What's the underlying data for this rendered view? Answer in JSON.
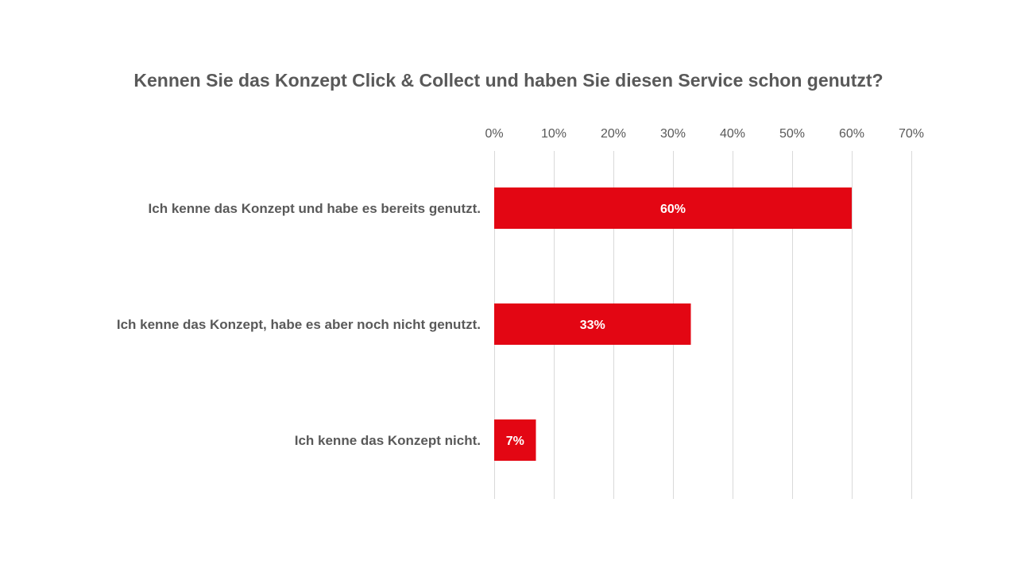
{
  "chart_data": {
    "type": "bar",
    "orientation": "horizontal",
    "title": "Kennen Sie das Konzept Click & Collect und haben Sie diesen Service schon genutzt?",
    "xlabel": "",
    "ylabel": "",
    "categories": [
      "Ich kenne das Konzept und habe es bereits genutzt.",
      "Ich kenne das Konzept, habe es aber noch nicht genutzt.",
      "Ich kenne das Konzept nicht."
    ],
    "values": [
      60,
      33,
      7
    ],
    "value_labels": [
      "60%",
      "33%",
      "7%"
    ],
    "x_ticks": [
      0,
      10,
      20,
      30,
      40,
      50,
      60,
      70
    ],
    "x_tick_labels": [
      "0%",
      "10%",
      "20%",
      "30%",
      "40%",
      "50%",
      "60%",
      "70%"
    ],
    "xlim": [
      0,
      70
    ],
    "x_axis_position": "top",
    "grid": true,
    "legend": "none",
    "colors": {
      "bar": "#e30613",
      "grid": "#d9d9d9",
      "text": "#595959",
      "data_label": "#ffffff"
    }
  }
}
